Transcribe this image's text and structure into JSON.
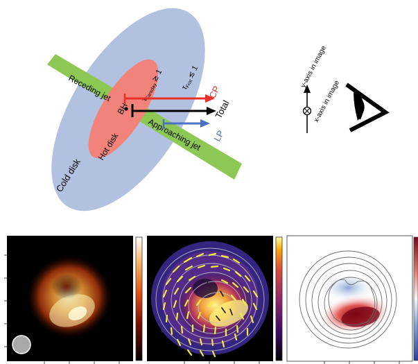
{
  "diagram": {
    "labels": {
      "receding_jet": "Receding jet",
      "approaching_jet": "Approaching jet",
      "cold_disk": "Cold disk",
      "hot_disk": "Hot disk",
      "bh": "BH",
      "tau_far_prefix": "τ",
      "tau_far_sub": "Faraday",
      "tau_far_rel": "≳ 1",
      "tau_rot_prefix": "τ",
      "tau_rot_sub": "Frot",
      "tau_rot_rel": "≲ 1",
      "cp": "CP",
      "total": "Total",
      "lp": "LP",
      "y_axis": "y-axis in image",
      "x_axis": "x-axis in image"
    },
    "colors": {
      "cold_disk": "#b3c1e1",
      "hot_disk": "#f1837b",
      "jet": "#8cc853",
      "cp": "#e8302a",
      "lp": "#4a72c4",
      "total": "#000000"
    },
    "icons": [
      "eye-icon",
      "into-page-circle-icon"
    ]
  },
  "panels": [
    {
      "name": "total-intensity-panel",
      "colormap": "afmhot"
    },
    {
      "name": "linear-polarization-panel",
      "colormap": "inferno"
    },
    {
      "name": "circular-polarization-panel",
      "colormap": "RdBu"
    }
  ]
}
